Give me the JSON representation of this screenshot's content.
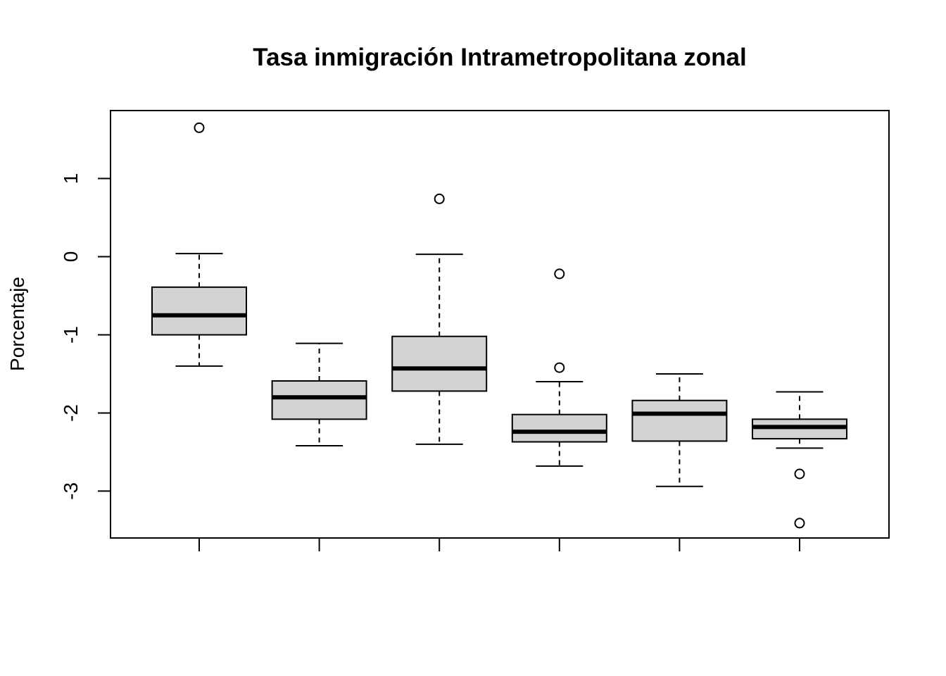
{
  "chart_data": {
    "type": "boxplot",
    "title": "Tasa inmigración Intrametropolitana zonal",
    "xlabel": "",
    "ylabel": "Porcentaje",
    "ylim": [
      -3.6,
      1.87
    ],
    "yticks": [
      1,
      0,
      -1,
      -2,
      -3
    ],
    "grid": false,
    "legend": "none",
    "colors": {
      "box_fill": "#d3d3d3",
      "stroke": "#000000"
    },
    "boxes": [
      {
        "whisker_low": -1.4,
        "q1": -1.0,
        "median": -0.75,
        "q3": -0.39,
        "whisker_high": 0.04,
        "outliers": [
          1.65
        ]
      },
      {
        "whisker_low": -2.42,
        "q1": -2.08,
        "median": -1.8,
        "q3": -1.59,
        "whisker_high": -1.11,
        "outliers": []
      },
      {
        "whisker_low": -2.4,
        "q1": -1.72,
        "median": -1.43,
        "q3": -1.02,
        "whisker_high": 0.03,
        "outliers": [
          0.74
        ]
      },
      {
        "whisker_low": -2.68,
        "q1": -2.37,
        "median": -2.24,
        "q3": -2.02,
        "whisker_high": -1.6,
        "outliers": [
          -0.22,
          -1.42
        ]
      },
      {
        "whisker_low": -2.94,
        "q1": -2.36,
        "median": -2.01,
        "q3": -1.84,
        "whisker_high": -1.5,
        "outliers": []
      },
      {
        "whisker_low": -2.45,
        "q1": -2.33,
        "median": -2.18,
        "q3": -2.08,
        "whisker_high": -1.73,
        "outliers": [
          -2.78,
          -3.41
        ]
      }
    ]
  }
}
